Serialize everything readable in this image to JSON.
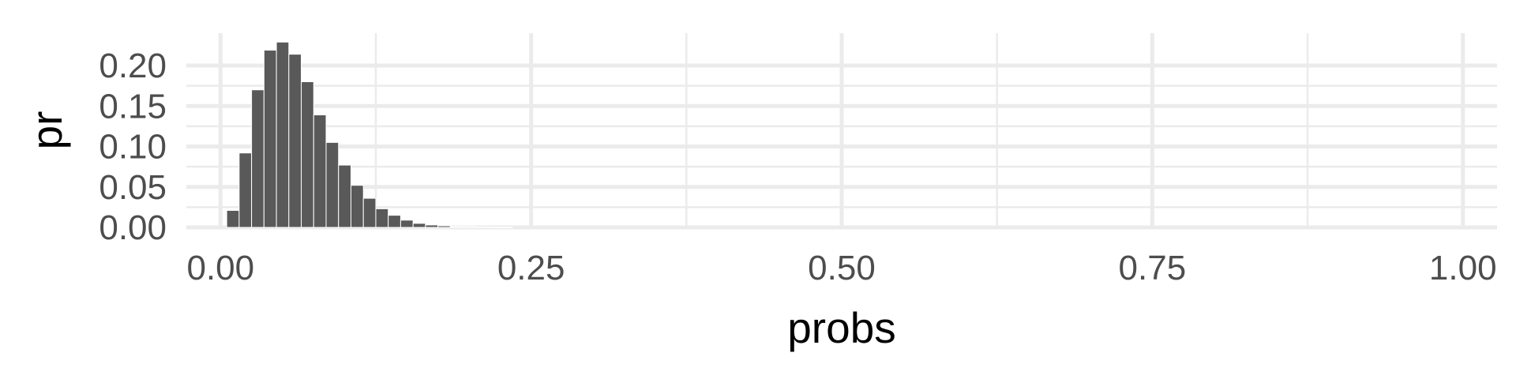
{
  "chart_data": {
    "type": "bar",
    "xlabel": "probs",
    "ylabel": "pr",
    "xlim": [
      -0.0275,
      1.0275
    ],
    "ylim": [
      0,
      0.24
    ],
    "x_ticks": [
      0.0,
      0.25,
      0.5,
      0.75,
      1.0
    ],
    "x_tick_labels": [
      "0.00",
      "0.25",
      "0.50",
      "0.75",
      "1.00"
    ],
    "y_ticks": [
      0.0,
      0.05,
      0.1,
      0.15,
      0.2
    ],
    "y_tick_labels": [
      "0.00",
      "0.05",
      "0.10",
      "0.15",
      "0.20"
    ],
    "grid": true,
    "bar_width": 0.01,
    "bar_color": "#595959",
    "grid_color": "#ebebeb",
    "x": [
      0.01,
      0.02,
      0.03,
      0.04,
      0.05,
      0.06,
      0.07,
      0.08,
      0.09,
      0.1,
      0.11,
      0.12,
      0.13,
      0.14,
      0.15,
      0.16,
      0.17,
      0.18,
      0.19,
      0.2,
      0.21,
      0.22,
      0.23
    ],
    "values": [
      0.021,
      0.092,
      0.17,
      0.219,
      0.229,
      0.214,
      0.18,
      0.139,
      0.105,
      0.077,
      0.052,
      0.036,
      0.023,
      0.015,
      0.009,
      0.005,
      0.003,
      0.002,
      0.001,
      0.001,
      0.0005,
      0.0003,
      0.0002
    ]
  }
}
